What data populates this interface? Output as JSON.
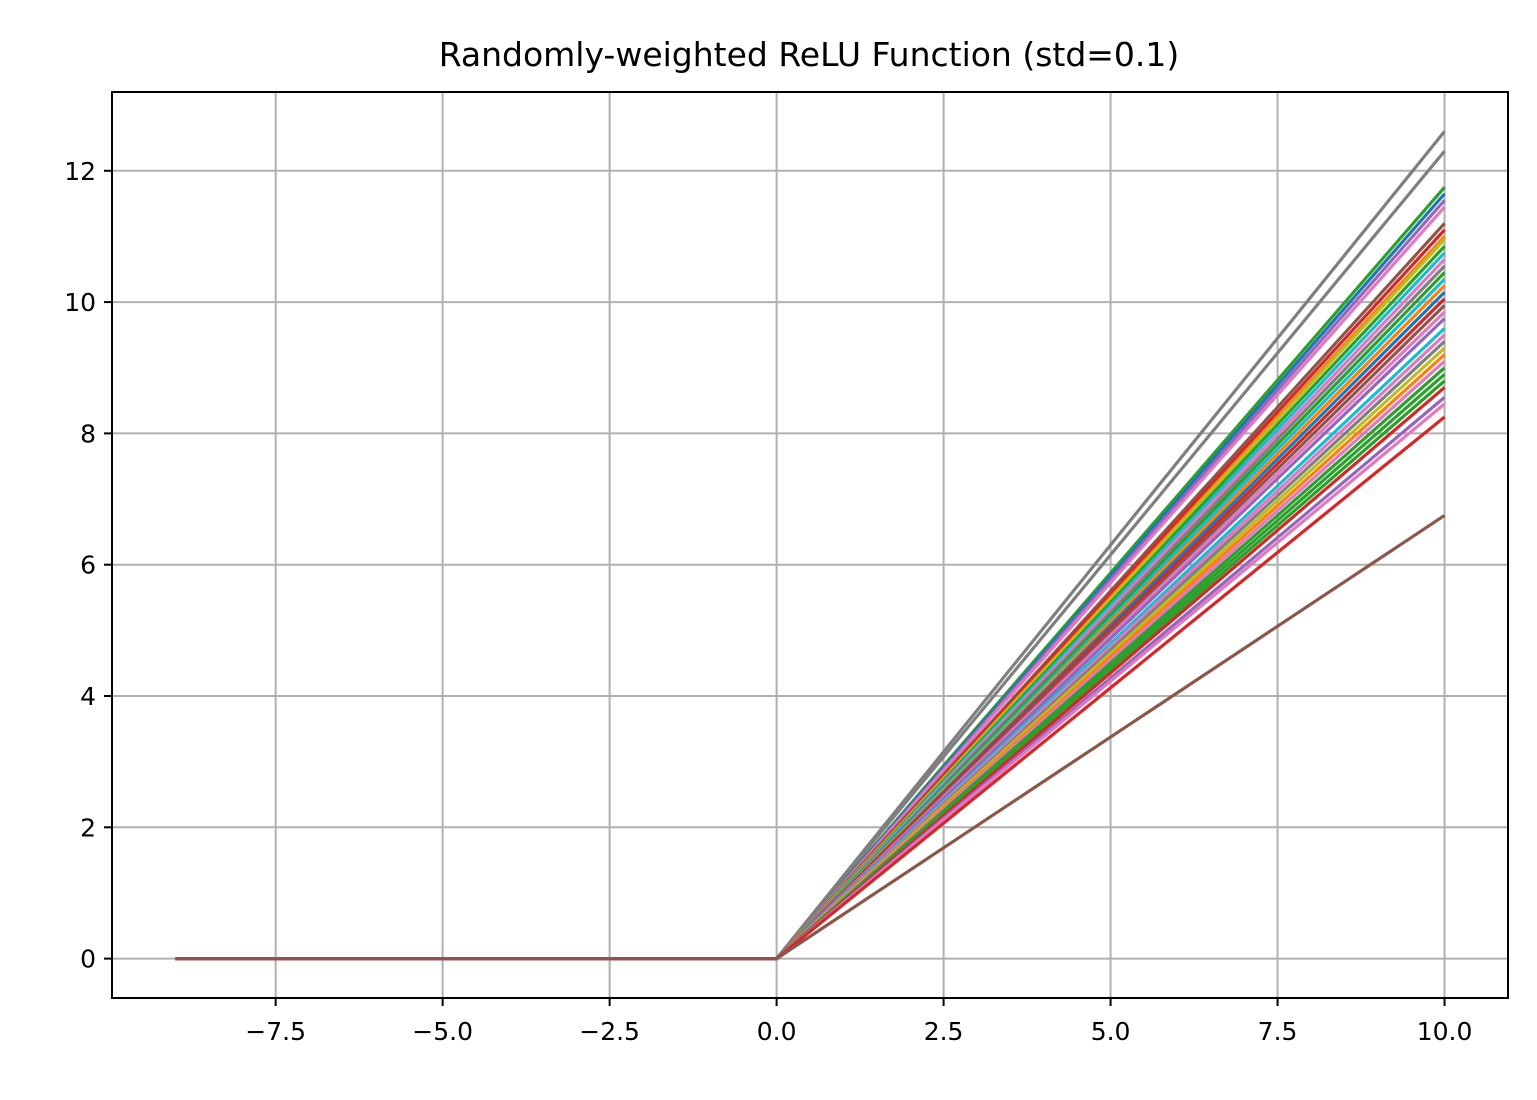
{
  "chart_data": {
    "type": "line",
    "title": "Randomly-weighted ReLU Function (std=0.1)",
    "xlabel": "",
    "ylabel": "",
    "xlim": [
      -9.95,
      10.95
    ],
    "ylim": [
      -0.6,
      13.2
    ],
    "grid": true,
    "legend": "none",
    "x_ticks": [
      -7.5,
      -5.0,
      -2.5,
      0.0,
      2.5,
      5.0,
      7.5,
      10.0
    ],
    "x_tick_labels": [
      "−7.5",
      "−5.0",
      "−2.5",
      "0.0",
      "2.5",
      "5.0",
      "7.5",
      "10.0"
    ],
    "y_ticks": [
      0,
      2,
      4,
      6,
      8,
      10,
      12
    ],
    "y_tick_labels": [
      "0",
      "2",
      "4",
      "6",
      "8",
      "10",
      "12"
    ],
    "x": [
      -9.0,
      0.0,
      10.0
    ],
    "series": [
      {
        "color": "#7f7f7f",
        "values": [
          0,
          0,
          12.6
        ]
      },
      {
        "color": "#7f7f7f",
        "values": [
          0,
          0,
          12.3
        ]
      },
      {
        "color": "#2ca02c",
        "values": [
          0,
          0,
          11.75
        ]
      },
      {
        "color": "#1f77b4",
        "values": [
          0,
          0,
          11.65
        ]
      },
      {
        "color": "#9467bd",
        "values": [
          0,
          0,
          11.55
        ]
      },
      {
        "color": "#e377c2",
        "values": [
          0,
          0,
          11.45
        ]
      },
      {
        "color": "#8c564b",
        "values": [
          0,
          0,
          11.2
        ]
      },
      {
        "color": "#d62728",
        "values": [
          0,
          0,
          11.1
        ]
      },
      {
        "color": "#ff7f0e",
        "values": [
          0,
          0,
          11.0
        ]
      },
      {
        "color": "#bcbd22",
        "values": [
          0,
          0,
          10.95
        ]
      },
      {
        "color": "#2ca02c",
        "values": [
          0,
          0,
          10.85
        ]
      },
      {
        "color": "#17becf",
        "values": [
          0,
          0,
          10.75
        ]
      },
      {
        "color": "#e377c2",
        "values": [
          0,
          0,
          10.65
        ]
      },
      {
        "color": "#7f7f7f",
        "values": [
          0,
          0,
          10.55
        ]
      },
      {
        "color": "#2ca02c",
        "values": [
          0,
          0,
          10.45
        ]
      },
      {
        "color": "#17becf",
        "values": [
          0,
          0,
          10.35
        ]
      },
      {
        "color": "#ff7f0e",
        "values": [
          0,
          0,
          10.25
        ]
      },
      {
        "color": "#1f77b4",
        "values": [
          0,
          0,
          10.15
        ]
      },
      {
        "color": "#d62728",
        "values": [
          0,
          0,
          10.05
        ]
      },
      {
        "color": "#8c564b",
        "values": [
          0,
          0,
          9.95
        ]
      },
      {
        "color": "#e377c2",
        "values": [
          0,
          0,
          9.85
        ]
      },
      {
        "color": "#9467bd",
        "values": [
          0,
          0,
          9.75
        ]
      },
      {
        "color": "#17becf",
        "values": [
          0,
          0,
          9.6
        ]
      },
      {
        "color": "#e377c2",
        "values": [
          0,
          0,
          9.5
        ]
      },
      {
        "color": "#7f7f7f",
        "values": [
          0,
          0,
          9.4
        ]
      },
      {
        "color": "#bcbd22",
        "values": [
          0,
          0,
          9.3
        ]
      },
      {
        "color": "#ff7f0e",
        "values": [
          0,
          0,
          9.2
        ]
      },
      {
        "color": "#e377c2",
        "values": [
          0,
          0,
          9.1
        ]
      },
      {
        "color": "#2ca02c",
        "values": [
          0,
          0,
          9.0
        ]
      },
      {
        "color": "#2ca02c",
        "values": [
          0,
          0,
          8.9
        ]
      },
      {
        "color": "#2ca02c",
        "values": [
          0,
          0,
          8.8
        ]
      },
      {
        "color": "#d62728",
        "values": [
          0,
          0,
          8.7
        ]
      },
      {
        "color": "#9467bd",
        "values": [
          0,
          0,
          8.55
        ]
      },
      {
        "color": "#e377c2",
        "values": [
          0,
          0,
          8.45
        ]
      },
      {
        "color": "#d62728",
        "values": [
          0,
          0,
          8.25
        ]
      },
      {
        "color": "#8c564b",
        "values": [
          0,
          0,
          6.75
        ]
      }
    ]
  }
}
